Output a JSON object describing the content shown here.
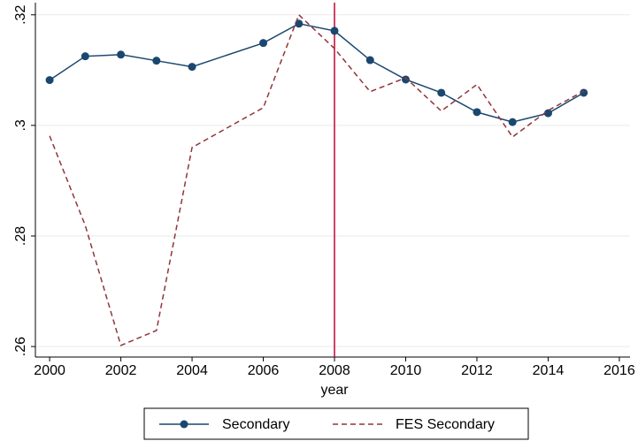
{
  "chart_data": {
    "type": "line",
    "x_label": "year",
    "xlim": [
      1999.6,
      2016.3
    ],
    "xticks": [
      2000,
      2002,
      2004,
      2006,
      2008,
      2010,
      2012,
      2014,
      2016
    ],
    "ylim": [
      0.2581,
      0.3222
    ],
    "yticks": [
      {
        "value": 0.26,
        "label": ".26"
      },
      {
        "value": 0.28,
        "label": ".28"
      },
      {
        "value": 0.3,
        "label": ".3"
      },
      {
        "value": 0.32,
        "label": ".32"
      }
    ],
    "grid": true,
    "vline": 2008,
    "vline_color": "#c10534",
    "x": [
      2000,
      2001,
      2002,
      2003,
      2004,
      2006,
      2007,
      2008,
      2009,
      2010,
      2011,
      2012,
      2013,
      2014,
      2015
    ],
    "series": [
      {
        "name": "Secondary",
        "color": "#1a476f",
        "style": "solid",
        "markers": true,
        "values": [
          0.3082,
          0.3125,
          0.3128,
          0.3117,
          0.3106,
          0.3149,
          0.3184,
          0.3171,
          0.3118,
          0.3083,
          0.3059,
          0.3024,
          0.3006,
          0.3022,
          0.3059
        ]
      },
      {
        "name": "FES Secondary",
        "color": "#90353b",
        "style": "dashed",
        "markers": false,
        "values": [
          0.2981,
          0.2819,
          0.2602,
          0.2629,
          0.296,
          0.3032,
          0.32,
          0.3139,
          0.3061,
          0.3086,
          0.3026,
          0.3074,
          0.2979,
          0.3027,
          0.3062
        ]
      }
    ]
  }
}
